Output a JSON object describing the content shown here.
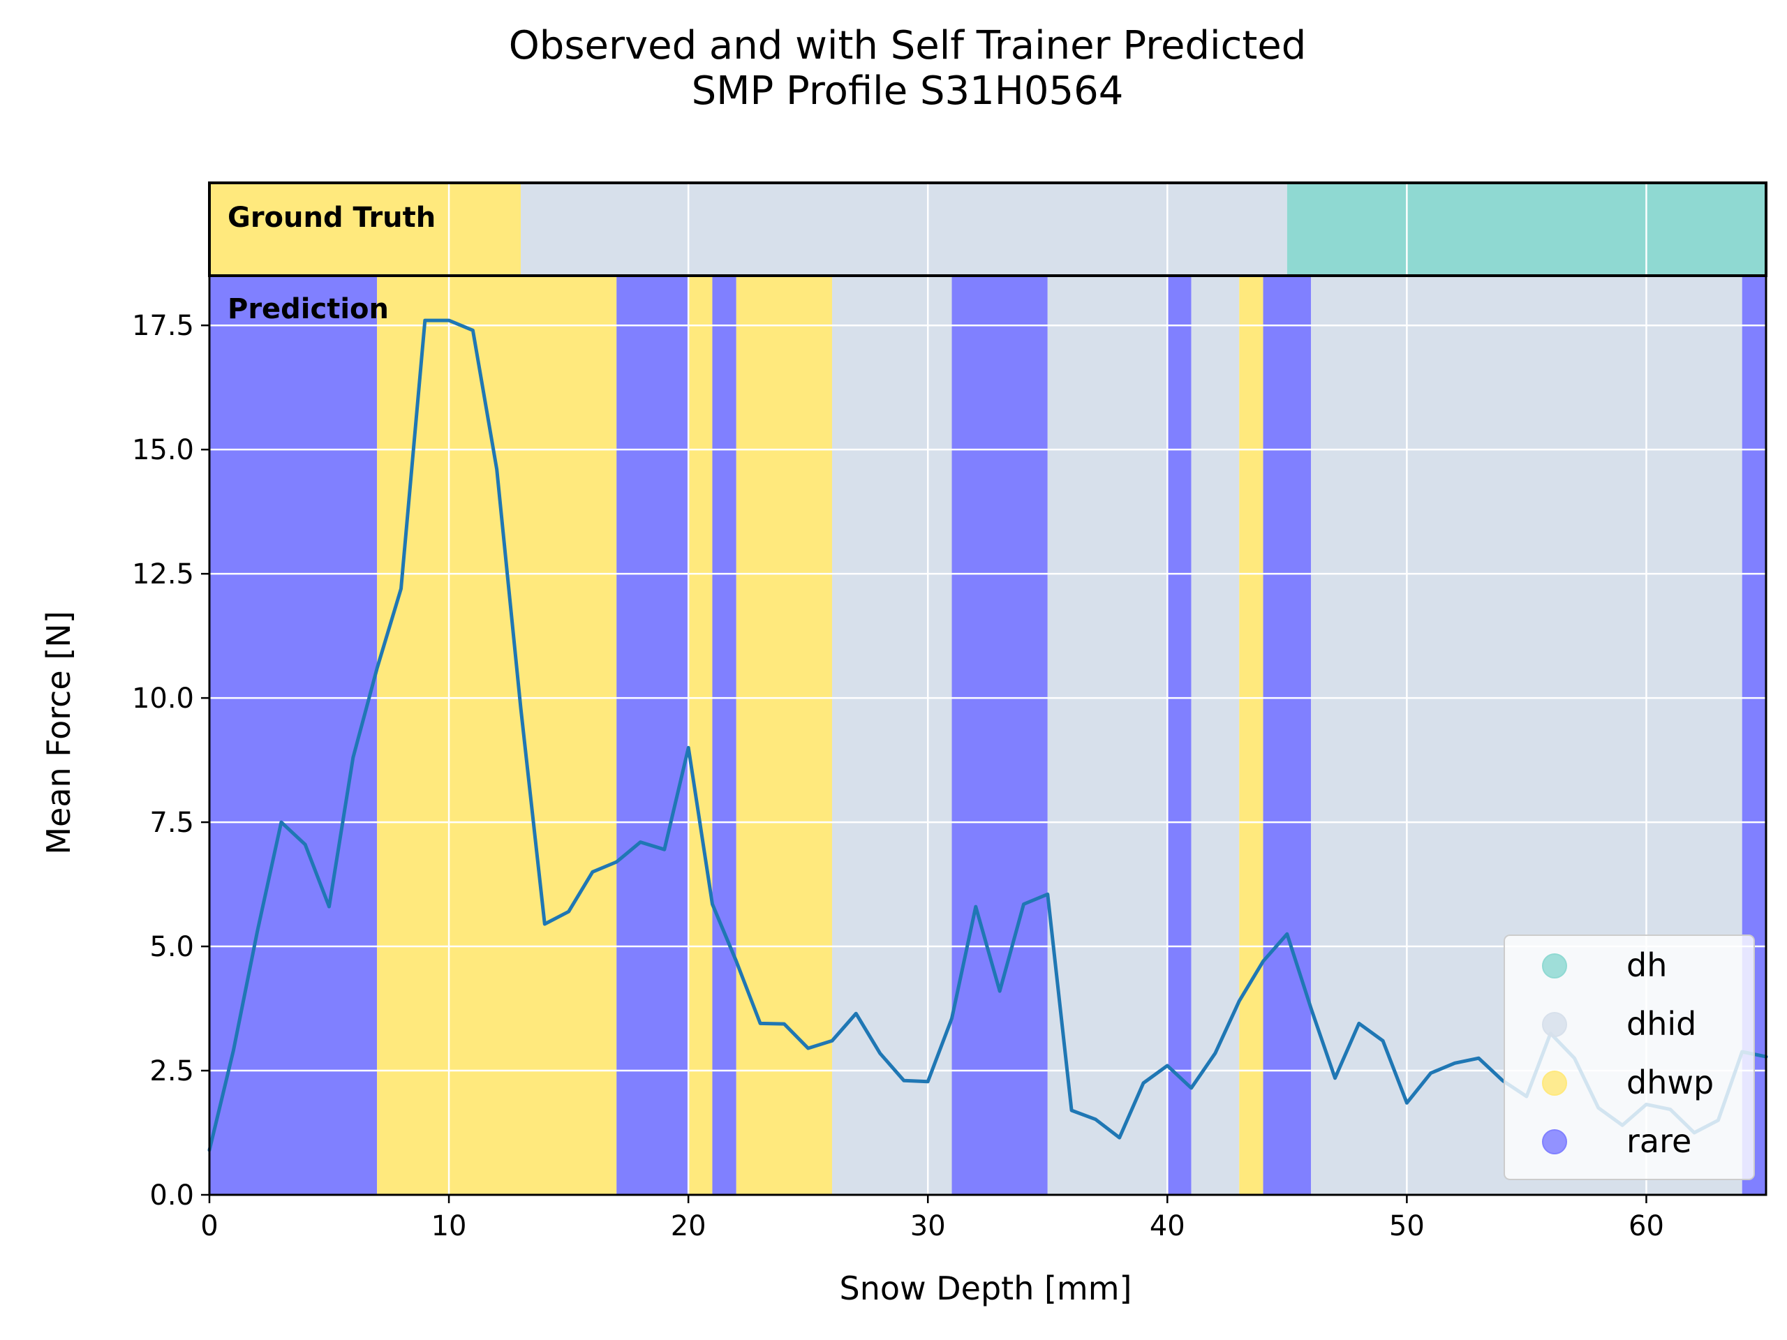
{
  "chart_data": {
    "type": "line",
    "title": "Observed and with Self Trainer Predicted\nSMP Profile S31H0564",
    "xlabel": "Snow Depth [mm]",
    "ylabel": "Mean Force [N]",
    "xlim": [
      0,
      65
    ],
    "ylim": [
      0,
      18.5
    ],
    "xticks": [
      0,
      10,
      20,
      30,
      40,
      50,
      60
    ],
    "yticks": [
      0.0,
      2.5,
      5.0,
      7.5,
      10.0,
      12.5,
      15.0,
      17.5
    ],
    "grid": true,
    "legend_position": "lower-right",
    "series": [
      {
        "color": "#1f77b4",
        "x": [
          0,
          1,
          2,
          3,
          4,
          5,
          6,
          7,
          8,
          9,
          10,
          11,
          12,
          13,
          14,
          15,
          16,
          17,
          18,
          19,
          20,
          21,
          22,
          23,
          24,
          25,
          26,
          27,
          28,
          29,
          30,
          31,
          32,
          33,
          34,
          35,
          36,
          37,
          38,
          39,
          40,
          41,
          42,
          43,
          44,
          45,
          46,
          47,
          48,
          49,
          50,
          51,
          52,
          53,
          54,
          55,
          56,
          57,
          58,
          59,
          60,
          61,
          62,
          63,
          64,
          65
        ],
        "y": [
          0.9,
          2.9,
          5.3,
          7.5,
          7.05,
          5.8,
          8.8,
          10.6,
          12.2,
          17.6,
          17.6,
          17.4,
          14.6,
          9.8,
          5.45,
          5.7,
          6.5,
          6.7,
          7.1,
          6.95,
          9.0,
          5.85,
          4.7,
          3.45,
          3.44,
          2.95,
          3.1,
          3.65,
          2.85,
          2.3,
          2.28,
          3.55,
          5.8,
          4.1,
          5.85,
          6.05,
          1.7,
          1.52,
          1.15,
          2.25,
          2.6,
          2.15,
          2.85,
          3.9,
          4.7,
          5.25,
          3.75,
          2.35,
          3.45,
          3.1,
          1.85,
          2.45,
          2.65,
          2.75,
          2.3,
          1.98,
          3.25,
          2.75,
          1.75,
          1.4,
          1.82,
          1.72,
          1.25,
          1.5,
          2.88,
          2.78
        ]
      }
    ],
    "ground_truth_label": "Ground Truth",
    "prediction_label": "Prediction",
    "ground_truth_segments": [
      {
        "start": 0,
        "end": 13,
        "class": "dhwp"
      },
      {
        "start": 13,
        "end": 45,
        "class": "dhid"
      },
      {
        "start": 45,
        "end": 65,
        "class": "dh"
      }
    ],
    "prediction_segments": [
      {
        "start": 0,
        "end": 7,
        "class": "rare"
      },
      {
        "start": 7,
        "end": 17,
        "class": "dhwp"
      },
      {
        "start": 17,
        "end": 20,
        "class": "rare"
      },
      {
        "start": 20,
        "end": 21,
        "class": "dhwp"
      },
      {
        "start": 21,
        "end": 22,
        "class": "rare"
      },
      {
        "start": 22,
        "end": 26,
        "class": "dhwp"
      },
      {
        "start": 26,
        "end": 31,
        "class": "dhid"
      },
      {
        "start": 31,
        "end": 35,
        "class": "rare"
      },
      {
        "start": 35,
        "end": 40,
        "class": "dhid"
      },
      {
        "start": 40,
        "end": 41,
        "class": "rare"
      },
      {
        "start": 41,
        "end": 43,
        "class": "dhid"
      },
      {
        "start": 43,
        "end": 44,
        "class": "dhwp"
      },
      {
        "start": 44,
        "end": 46,
        "class": "rare"
      },
      {
        "start": 46,
        "end": 64,
        "class": "dhid"
      },
      {
        "start": 64,
        "end": 65,
        "class": "rare"
      }
    ],
    "classes": [
      {
        "name": "dh",
        "color": "#8fd9d2"
      },
      {
        "name": "dhid",
        "color": "#d7e0eb"
      },
      {
        "name": "dhwp",
        "color": "#ffe97d"
      },
      {
        "name": "rare",
        "color": "#8080ff"
      }
    ]
  }
}
